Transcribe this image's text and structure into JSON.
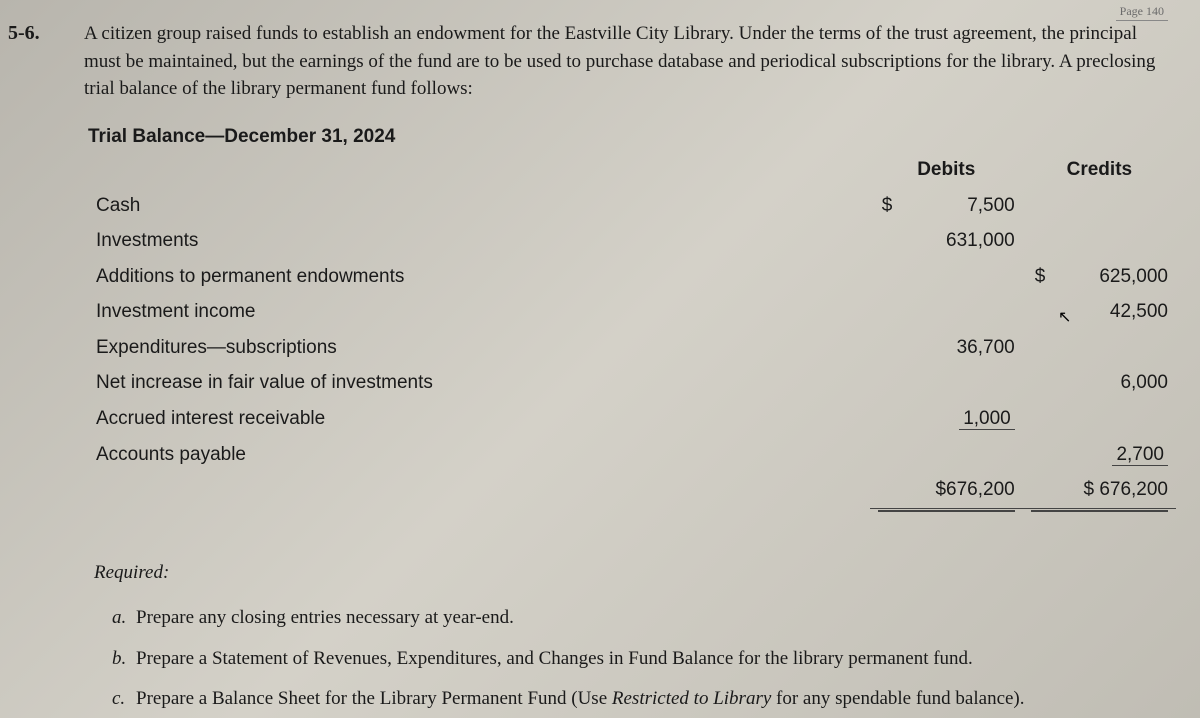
{
  "page_tag": "Page 140",
  "problem_number": "5-6.",
  "intro": "A citizen group raised funds to establish an endowment for the Eastville City Library. Under the terms of the trust agreement, the principal must be maintained, but the earnings of the fund are to be used to purchase database and periodical subscriptions for the library. A preclosing trial balance of the library permanent fund follows:",
  "trial_balance": {
    "heading": "Trial Balance—December 31, 2024",
    "col_headers": {
      "debits": "Debits",
      "credits": "Credits"
    },
    "rows": [
      {
        "label": "Cash",
        "debit": "7,500",
        "debit_has_dollar": true
      },
      {
        "label": "Investments",
        "debit": "631,000"
      },
      {
        "label": "Additions to permanent endowments",
        "credit": "625,000",
        "credit_has_dollar": true
      },
      {
        "label": "Investment income",
        "credit": "42,500"
      },
      {
        "label": "Expenditures—subscriptions",
        "debit": "36,700"
      },
      {
        "label": "Net increase in fair value of investments",
        "credit": "6,000"
      },
      {
        "label": "Accrued interest receivable",
        "debit": "1,000"
      },
      {
        "label": "Accounts payable",
        "credit": "2,700"
      }
    ],
    "totals": {
      "debit": "$676,200",
      "credit": "$ 676,200"
    }
  },
  "required_label": "Required:",
  "required_items": {
    "a": "Prepare any closing entries necessary at year-end.",
    "b": "Prepare a Statement of Revenues, Expenditures, and Changes in Fund Balance for the library permanent fund.",
    "c_prefix": "Prepare a Balance Sheet for the Library Permanent Fund (Use ",
    "c_italic": "Restricted to Library",
    "c_suffix": " for any spendable fund balance)."
  },
  "markers": {
    "a": "a.",
    "b": "b.",
    "c": "c."
  }
}
